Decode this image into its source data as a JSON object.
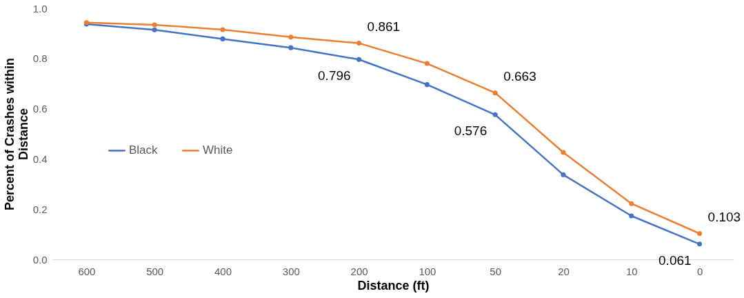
{
  "chart_data": {
    "type": "line",
    "xlabel": "Distance (ft)",
    "ylabel": "Percent of Crashes within Distance",
    "categories": [
      "600",
      "500",
      "400",
      "300",
      "200",
      "100",
      "50",
      "20",
      "10",
      "0"
    ],
    "series": [
      {
        "name": "Black",
        "color": "#4472c4",
        "values": [
          0.937,
          0.914,
          0.878,
          0.843,
          0.796,
          0.696,
          0.576,
          0.337,
          0.173,
          0.061
        ],
        "value_labels": [
          null,
          null,
          null,
          null,
          "0.796",
          null,
          "0.576",
          null,
          null,
          "0.061"
        ]
      },
      {
        "name": "White",
        "color": "#ed7d31",
        "values": [
          0.943,
          0.934,
          0.915,
          0.885,
          0.861,
          0.78,
          0.663,
          0.426,
          0.222,
          0.103
        ],
        "value_labels": [
          null,
          null,
          null,
          null,
          "0.861",
          null,
          "0.663",
          null,
          null,
          "0.103"
        ]
      }
    ],
    "ylim": [
      0,
      1
    ],
    "yticks": [
      {
        "value": 0,
        "label": "0.0"
      },
      {
        "value": 0.2,
        "label": "0.2"
      },
      {
        "value": 0.4,
        "label": "0.4"
      },
      {
        "value": 0.6,
        "label": "0.6"
      },
      {
        "value": 0.8,
        "label": "0.8"
      },
      {
        "value": 1,
        "label": "1.0"
      }
    ],
    "grid": false,
    "legend": "left",
    "marker": "circle",
    "line_style": "solid"
  }
}
